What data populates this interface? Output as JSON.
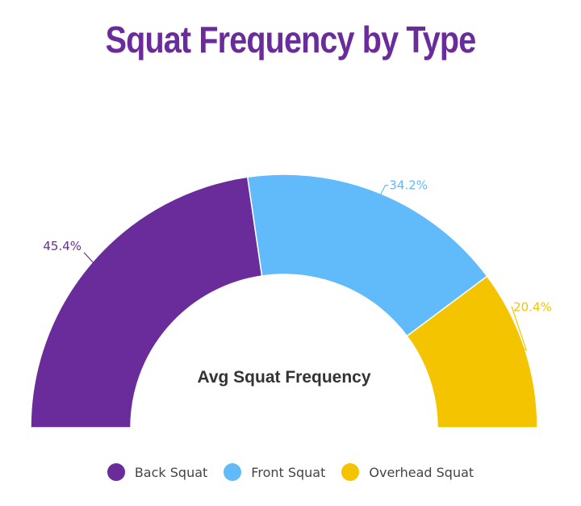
{
  "title": "Squat Frequency by Type",
  "colors": {
    "title": "#6a2c9a",
    "center_label": "#333333"
  },
  "chart_data": {
    "type": "pie",
    "variant": "semi-donut",
    "title": "Squat Frequency by Type",
    "center_label": "Avg Squat Frequency",
    "legend_position": "bottom",
    "series": [
      {
        "name": "Back Squat",
        "value": 45.4,
        "label": "45.4%",
        "color": "#6a2c9a"
      },
      {
        "name": "Front Squat",
        "value": 34.2,
        "label": "34.2%",
        "color": "#61baf9"
      },
      {
        "name": "Overhead Squat",
        "value": 20.4,
        "label": "20.4%",
        "color": "#f5c400"
      }
    ]
  }
}
